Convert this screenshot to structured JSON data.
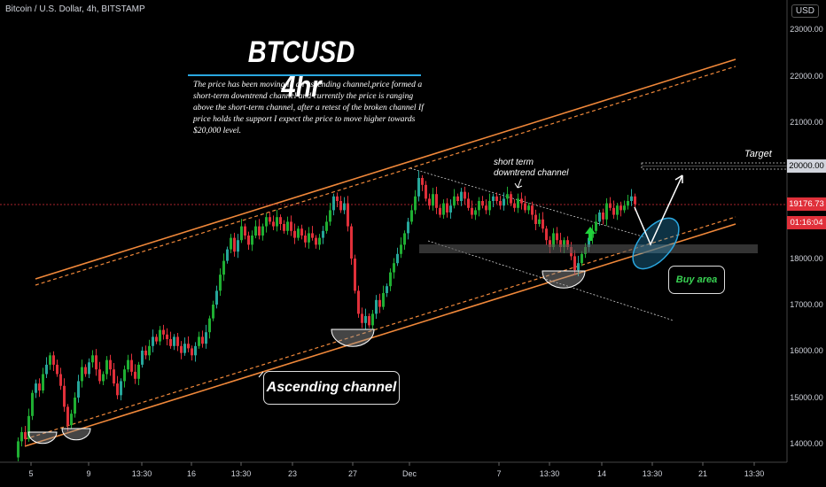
{
  "header": {
    "symbol": "Bitcoin / U.S. Dollar, 4h, BITSTAMP",
    "currency": "USD"
  },
  "annotations": {
    "title": "BTCUSD 4hr",
    "description": "The price has been moving in an ascending channel,price formed a short-term downtrend channel and currently the price is ranging above the short-term channel, after a retest of the broken channel If price holds the support I expect the price to move higher towards $20,000 level.",
    "short_term_line1": "short term",
    "short_term_line2": "downtrend channel",
    "target": "Target",
    "buy_area": "Buy area",
    "ascending_channel": "Ascending channel"
  },
  "price_tags": {
    "current_price": "19176.73",
    "countdown": "01:16:04",
    "target_level": "20000.00"
  },
  "colors": {
    "up": "#26a69a",
    "up_bright": "#1fae32",
    "down": "#e0303a",
    "channel": "#f0883a",
    "price_line": "#e0303a",
    "buy_ellipse": "#2aa7e0"
  },
  "chart_data": {
    "type": "candlestick",
    "y_axis": {
      "ticks": [
        "23000.00",
        "22000.00",
        "21000.00",
        "20000.00",
        "18000.00",
        "17000.00",
        "16000.00",
        "15000.00",
        "14000.00"
      ],
      "tick_values": [
        23000,
        22000,
        21000,
        20000,
        18000,
        17000,
        16000,
        15000,
        14000
      ],
      "range": [
        13600,
        23300
      ]
    },
    "x_axis": {
      "ticks": [
        "5",
        "9",
        "13:30",
        "16",
        "13:30",
        "23",
        "27",
        "Dec",
        "7",
        "13:30",
        "14",
        "13:30",
        "21",
        "13:30"
      ]
    },
    "current_price": 19176.73,
    "target_level": 20000,
    "path": [
      [
        0,
        13700
      ],
      [
        6,
        14050
      ],
      [
        10,
        14250
      ],
      [
        14,
        14100
      ],
      [
        18,
        14600
      ],
      [
        22,
        15100
      ],
      [
        26,
        15300
      ],
      [
        30,
        15150
      ],
      [
        34,
        15500
      ],
      [
        38,
        15700
      ],
      [
        42,
        15900
      ],
      [
        46,
        15700
      ],
      [
        50,
        15500
      ],
      [
        54,
        15250
      ],
      [
        58,
        14800
      ],
      [
        62,
        14400
      ],
      [
        66,
        14650
      ],
      [
        70,
        15000
      ],
      [
        74,
        15350
      ],
      [
        78,
        15650
      ],
      [
        82,
        15500
      ],
      [
        86,
        15750
      ],
      [
        90,
        15900
      ],
      [
        94,
        15600
      ],
      [
        98,
        15350
      ],
      [
        102,
        15500
      ],
      [
        106,
        15800
      ],
      [
        110,
        15600
      ],
      [
        114,
        15300
      ],
      [
        118,
        15050
      ],
      [
        122,
        15350
      ],
      [
        126,
        15600
      ],
      [
        130,
        15800
      ],
      [
        134,
        15550
      ],
      [
        138,
        15400
      ],
      [
        142,
        15700
      ],
      [
        146,
        16000
      ],
      [
        150,
        15900
      ],
      [
        154,
        16100
      ],
      [
        158,
        16300
      ],
      [
        162,
        16200
      ],
      [
        166,
        16450
      ],
      [
        170,
        16350
      ],
      [
        174,
        16250
      ],
      [
        178,
        16100
      ],
      [
        182,
        16300
      ],
      [
        186,
        16100
      ],
      [
        190,
        15950
      ],
      [
        194,
        16150
      ],
      [
        198,
        16050
      ],
      [
        202,
        15900
      ],
      [
        206,
        16100
      ],
      [
        210,
        16300
      ],
      [
        214,
        16150
      ],
      [
        218,
        16400
      ],
      [
        222,
        16700
      ],
      [
        226,
        17000
      ],
      [
        230,
        17300
      ],
      [
        234,
        17650
      ],
      [
        238,
        17950
      ],
      [
        242,
        18200
      ],
      [
        246,
        18450
      ],
      [
        250,
        18150
      ],
      [
        254,
        18400
      ],
      [
        258,
        18700
      ],
      [
        262,
        18500
      ],
      [
        266,
        18300
      ],
      [
        270,
        18500
      ],
      [
        274,
        18700
      ],
      [
        278,
        18500
      ],
      [
        282,
        18700
      ],
      [
        286,
        18900
      ],
      [
        290,
        18800
      ],
      [
        294,
        18700
      ],
      [
        298,
        18900
      ],
      [
        302,
        18750
      ],
      [
        306,
        18600
      ],
      [
        310,
        18800
      ],
      [
        314,
        18600
      ],
      [
        318,
        18450
      ],
      [
        322,
        18650
      ],
      [
        326,
        18500
      ],
      [
        330,
        18350
      ],
      [
        334,
        18550
      ],
      [
        338,
        18450
      ],
      [
        342,
        18300
      ],
      [
        346,
        18450
      ],
      [
        350,
        18600
      ],
      [
        354,
        18800
      ],
      [
        358,
        19050
      ],
      [
        362,
        19350
      ],
      [
        366,
        19250
      ],
      [
        370,
        19050
      ],
      [
        374,
        19200
      ],
      [
        378,
        18700
      ],
      [
        382,
        18000
      ],
      [
        386,
        17300
      ],
      [
        390,
        16800
      ],
      [
        394,
        16600
      ],
      [
        398,
        16750
      ],
      [
        402,
        16550
      ],
      [
        406,
        16800
      ],
      [
        410,
        17100
      ],
      [
        414,
        16950
      ],
      [
        418,
        17250
      ],
      [
        422,
        17400
      ],
      [
        426,
        17700
      ],
      [
        430,
        17900
      ],
      [
        434,
        18100
      ],
      [
        438,
        18300
      ],
      [
        442,
        18550
      ],
      [
        446,
        18800
      ],
      [
        450,
        19050
      ],
      [
        454,
        19350
      ],
      [
        458,
        19750
      ],
      [
        462,
        19600
      ],
      [
        466,
        19300
      ],
      [
        470,
        19150
      ],
      [
        474,
        19400
      ],
      [
        478,
        19100
      ],
      [
        482,
        18950
      ],
      [
        486,
        19200
      ],
      [
        490,
        19000
      ],
      [
        494,
        19150
      ],
      [
        498,
        19350
      ],
      [
        502,
        19250
      ],
      [
        506,
        19450
      ],
      [
        510,
        19300
      ],
      [
        514,
        19100
      ],
      [
        518,
        18950
      ],
      [
        522,
        19050
      ],
      [
        526,
        19250
      ],
      [
        530,
        19150
      ],
      [
        534,
        19050
      ],
      [
        538,
        19250
      ],
      [
        542,
        19350
      ],
      [
        546,
        19250
      ],
      [
        550,
        19150
      ],
      [
        554,
        19300
      ],
      [
        558,
        19400
      ],
      [
        562,
        19200
      ],
      [
        566,
        19100
      ],
      [
        570,
        19300
      ],
      [
        574,
        19200
      ],
      [
        578,
        19050
      ],
      [
        582,
        19150
      ],
      [
        586,
        18950
      ],
      [
        590,
        18750
      ],
      [
        594,
        18850
      ],
      [
        598,
        18650
      ],
      [
        602,
        18400
      ],
      [
        606,
        18250
      ],
      [
        610,
        18550
      ],
      [
        614,
        18400
      ],
      [
        618,
        18250
      ],
      [
        622,
        18400
      ],
      [
        626,
        18250
      ],
      [
        630,
        18050
      ],
      [
        634,
        17750
      ],
      [
        638,
        17900
      ],
      [
        642,
        18100
      ],
      [
        646,
        18250
      ],
      [
        650,
        18450
      ],
      [
        654,
        18600
      ],
      [
        658,
        18800
      ],
      [
        662,
        19000
      ],
      [
        666,
        18850
      ],
      [
        670,
        19200
      ],
      [
        674,
        19100
      ],
      [
        678,
        18950
      ],
      [
        682,
        19150
      ],
      [
        686,
        19050
      ],
      [
        690,
        19150
      ],
      [
        694,
        19250
      ],
      [
        698,
        19350
      ],
      [
        702,
        19180
      ]
    ]
  }
}
